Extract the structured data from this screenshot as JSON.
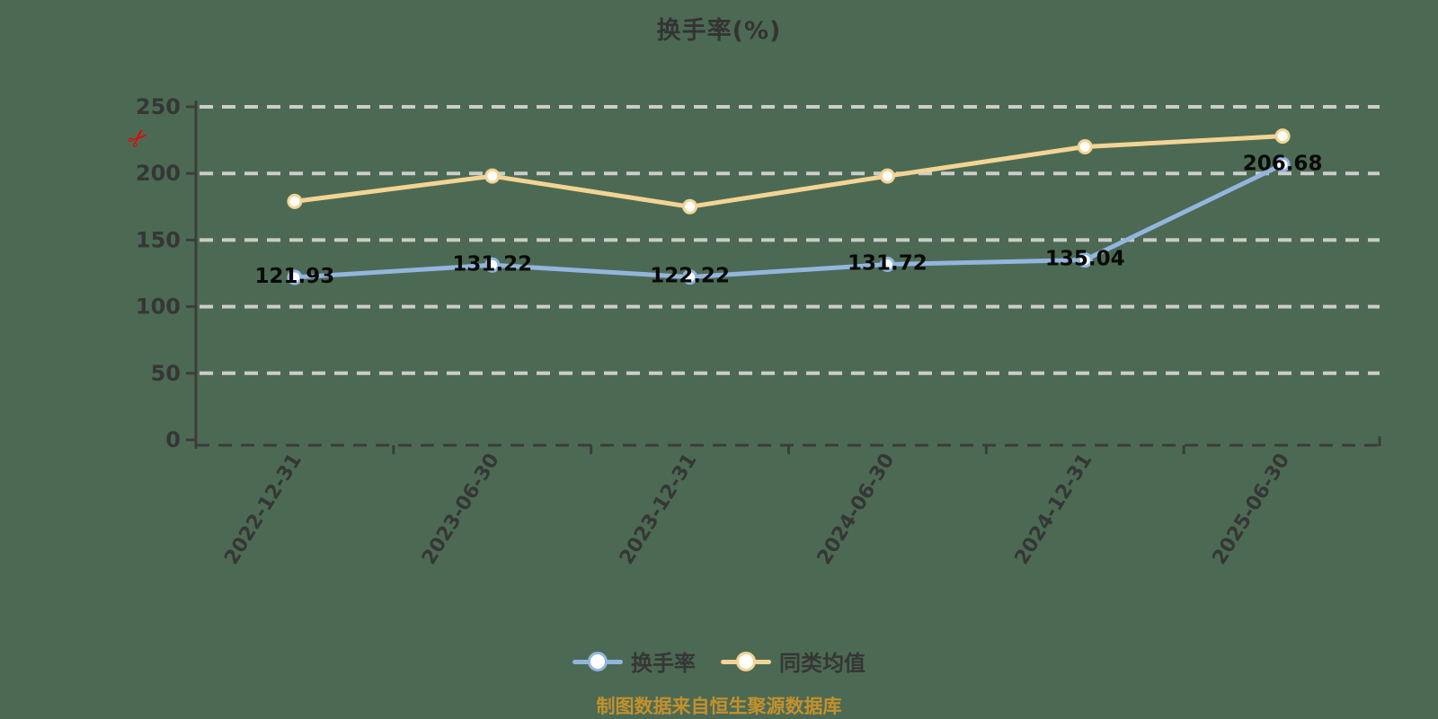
{
  "colors": {
    "background": "#4c6a53",
    "gridline": "#cccccc",
    "axis": "#3c3c3c",
    "tick_label": "#363636",
    "title_text": "#343434",
    "point_label": "#0a0a0a",
    "footer_text": "#c4902c",
    "scissors": "#e60505",
    "series_turnover": "#93b5de",
    "series_peer_avg": "#f3d494"
  },
  "icons": {
    "scissors": "✂"
  },
  "chart_data": {
    "type": "line",
    "title": "换手率(%)",
    "categories": [
      "2022-12-31",
      "2023-06-30",
      "2023-12-31",
      "2024-06-30",
      "2024-12-31",
      "2025-06-30"
    ],
    "series": [
      {
        "name": "换手率",
        "color": "#93b5de",
        "values": [
          121.93,
          131.22,
          122.22,
          131.72,
          135.04,
          206.68
        ],
        "point_labels": [
          "121.93",
          "131.22",
          "122.22",
          "131.72",
          "135.04",
          "206.68"
        ],
        "show_point_labels": true,
        "marker": "circle-white-fill"
      },
      {
        "name": "同类均值",
        "color": "#f3d494",
        "values": [
          179,
          198,
          175,
          198,
          220,
          228
        ],
        "point_labels": [],
        "show_point_labels": false,
        "marker": "circle-white-fill"
      }
    ],
    "xlabel": "",
    "ylabel": "",
    "ylim": [
      0,
      250
    ],
    "yticks": [
      0,
      50,
      100,
      150,
      200,
      250
    ],
    "grid": "horizontal dashed",
    "legend_position": "bottom"
  },
  "legend": {
    "items": [
      {
        "label": "换手率",
        "color": "#93b5de"
      },
      {
        "label": "同类均值",
        "color": "#f3d494"
      }
    ]
  },
  "footer": {
    "source_note": "制图数据来自恒生聚源数据库"
  }
}
